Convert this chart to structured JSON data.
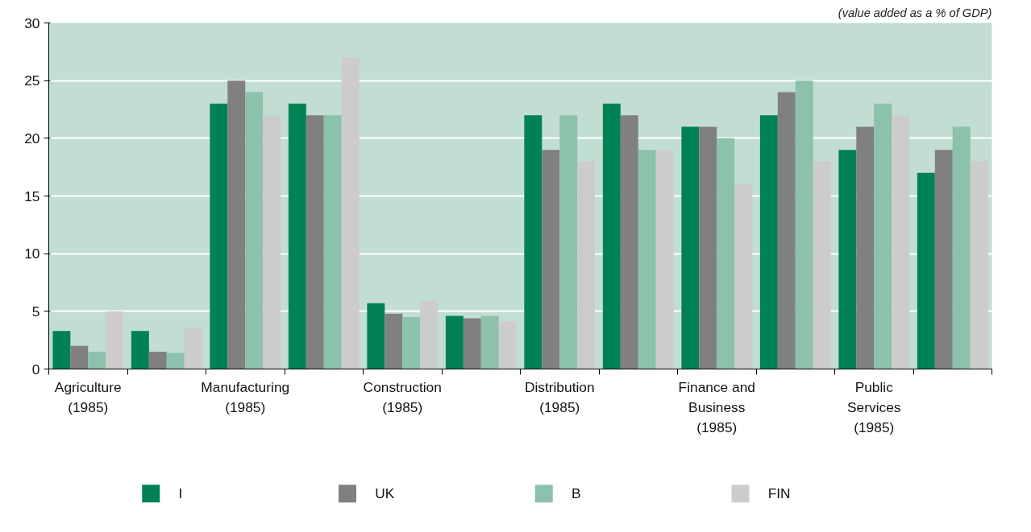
{
  "chart_data": {
    "type": "bar",
    "annotations": [
      "(value added as a % of GDP)"
    ],
    "categories": [
      "Agriculture\n(1985)",
      null,
      "Manufacturing\n(1985)",
      null,
      "Construction\n(1985)",
      null,
      "Distribution\n(1985)",
      null,
      "Finance and\nBusiness\n(1985)",
      null,
      "Public\nServices\n(1985)",
      null
    ],
    "series": [
      {
        "name": "I",
        "color": "#008255",
        "values": [
          3.3,
          3.3,
          23,
          23,
          5.7,
          4.6,
          22,
          23,
          21,
          22,
          19,
          17
        ]
      },
      {
        "name": "UK",
        "color": "#808080",
        "values": [
          2,
          1.5,
          25,
          22,
          4.8,
          4.4,
          19,
          22,
          21,
          24,
          21,
          19
        ]
      },
      {
        "name": "B",
        "color": "#8cc1ac",
        "values": [
          1.5,
          1.4,
          24,
          22,
          4.5,
          4.6,
          22,
          19,
          20,
          25,
          23,
          21
        ]
      },
      {
        "name": "FIN",
        "color": "#cccccc",
        "values": [
          5,
          3.5,
          22,
          27,
          5.9,
          4.1,
          18,
          19,
          16,
          18,
          22,
          18
        ]
      }
    ],
    "ylim": [
      0,
      30
    ],
    "yticks": [
      0,
      5,
      10,
      15,
      20,
      25,
      30
    ],
    "grid": "y",
    "legend": "bottom"
  }
}
